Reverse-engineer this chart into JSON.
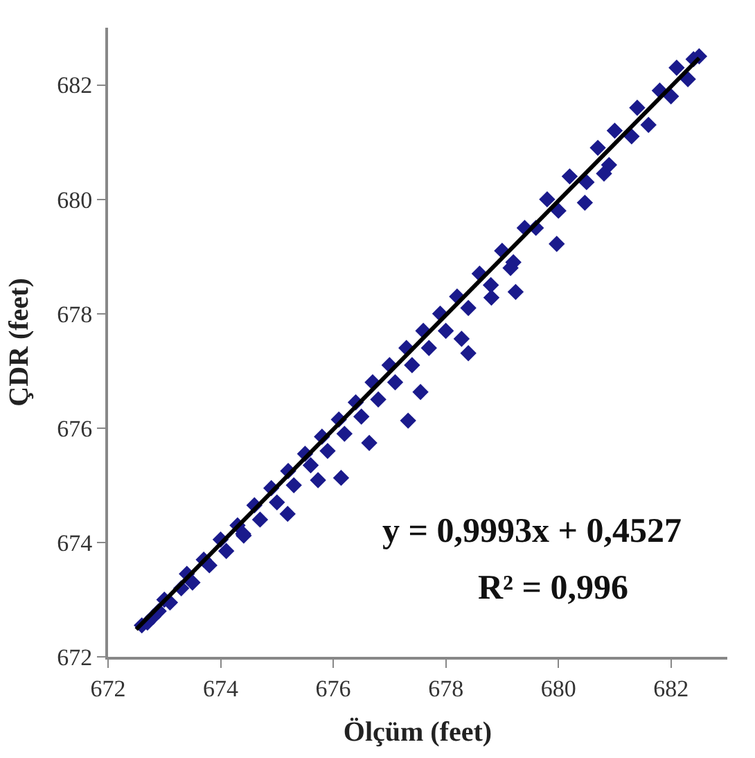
{
  "chart_data": {
    "type": "scatter",
    "xlabel": "Ölçüm (feet)",
    "ylabel": "ÇDR (feet)",
    "annotations": [
      "y = 0,9993x + 0,4527",
      "R² = 0,996"
    ],
    "xlim": [
      672,
      683
    ],
    "ylim": [
      672,
      683
    ],
    "xticks": [
      672,
      674,
      676,
      678,
      680,
      682
    ],
    "yticks": [
      672,
      674,
      676,
      678,
      680,
      682
    ],
    "marker": "diamond",
    "series": [
      {
        "color": "#1a1a8c",
        "x": [
          672.6,
          672.7,
          672.8,
          672.9,
          673.0,
          673.1,
          673.3,
          673.4,
          673.5,
          673.7,
          673.8,
          674.0,
          674.1,
          674.3,
          674.4,
          674.6,
          674.7,
          674.9,
          675.0,
          675.2,
          675.3,
          675.5,
          675.6,
          675.8,
          675.9,
          676.1,
          676.2,
          676.4,
          676.5,
          676.7,
          676.8,
          677.0,
          677.1,
          677.3,
          677.4,
          677.6,
          677.7,
          677.9,
          678.0,
          678.2,
          678.4,
          678.6,
          678.8,
          679.0,
          679.2,
          679.4,
          679.6,
          679.8,
          680.0,
          680.2,
          680.5,
          680.7,
          680.9,
          681.0,
          681.3,
          681.4,
          681.6,
          681.8,
          682.0,
          682.1,
          682.3,
          682.4,
          682.5,
          679.97,
          680.47,
          680.81,
          679.24,
          678.81,
          679.15,
          678.28,
          678.4,
          677.55,
          677.33,
          676.64,
          676.14,
          675.19,
          675.73,
          674.41
        ],
        "values": [
          672.55,
          672.6,
          672.7,
          672.8,
          673.0,
          672.95,
          673.2,
          673.45,
          673.3,
          673.7,
          673.6,
          674.05,
          673.85,
          674.3,
          674.15,
          674.65,
          674.4,
          674.95,
          674.7,
          675.25,
          675.0,
          675.55,
          675.35,
          675.85,
          675.6,
          676.15,
          675.9,
          676.45,
          676.2,
          676.8,
          676.5,
          677.1,
          676.8,
          677.4,
          677.1,
          677.7,
          677.4,
          678.0,
          677.7,
          678.3,
          678.1,
          678.7,
          678.5,
          679.1,
          678.9,
          679.5,
          679.5,
          680.0,
          679.8,
          680.4,
          680.3,
          680.9,
          680.6,
          681.2,
          681.1,
          681.6,
          681.3,
          681.9,
          681.8,
          682.3,
          682.1,
          682.45,
          682.5,
          679.22,
          679.94,
          680.45,
          678.38,
          678.28,
          678.8,
          677.56,
          677.31,
          676.63,
          676.13,
          675.74,
          675.13,
          674.5,
          675.09,
          674.12
        ]
      },
      {
        "type": "line",
        "color": "#000000",
        "marker": "none",
        "line_style": "solid",
        "x": [
          672.5,
          682.5
        ],
        "values": [
          672.48,
          682.47
        ]
      }
    ]
  }
}
